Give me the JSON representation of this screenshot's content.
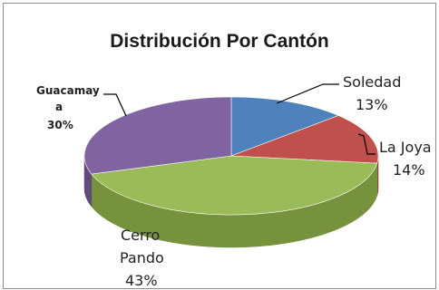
{
  "chart_data": {
    "type": "pie",
    "title": "Distribución Por Cantón",
    "slices": [
      {
        "label": "Soledad",
        "value": 13,
        "color": "#4f81bd",
        "side": "#3a6597",
        "pct": "13%"
      },
      {
        "label": "La Joya",
        "value": 14,
        "color": "#c0504d",
        "side": "#973d3a",
        "pct": "14%"
      },
      {
        "label": "Cerro Pando",
        "value": 43,
        "color": "#9bbb59",
        "side": "#76923c",
        "pct": "43%"
      },
      {
        "label": "Guacamaya",
        "value": 30,
        "color": "#8064a2",
        "side": "#5f4a7a",
        "pct": "30%"
      }
    ],
    "labels": {
      "soledad": {
        "line1": "Soledad",
        "line2": "13%"
      },
      "lajoya": {
        "line1": "La Joya",
        "line2": "14%"
      },
      "cerropando": {
        "line1": "Cerro",
        "line2": "Pando",
        "line3": "43%"
      },
      "guacamaya": {
        "line1": "Guacamay",
        "line2": "a",
        "line3": "30%"
      }
    },
    "legend": "none",
    "style": "3d-pie"
  }
}
